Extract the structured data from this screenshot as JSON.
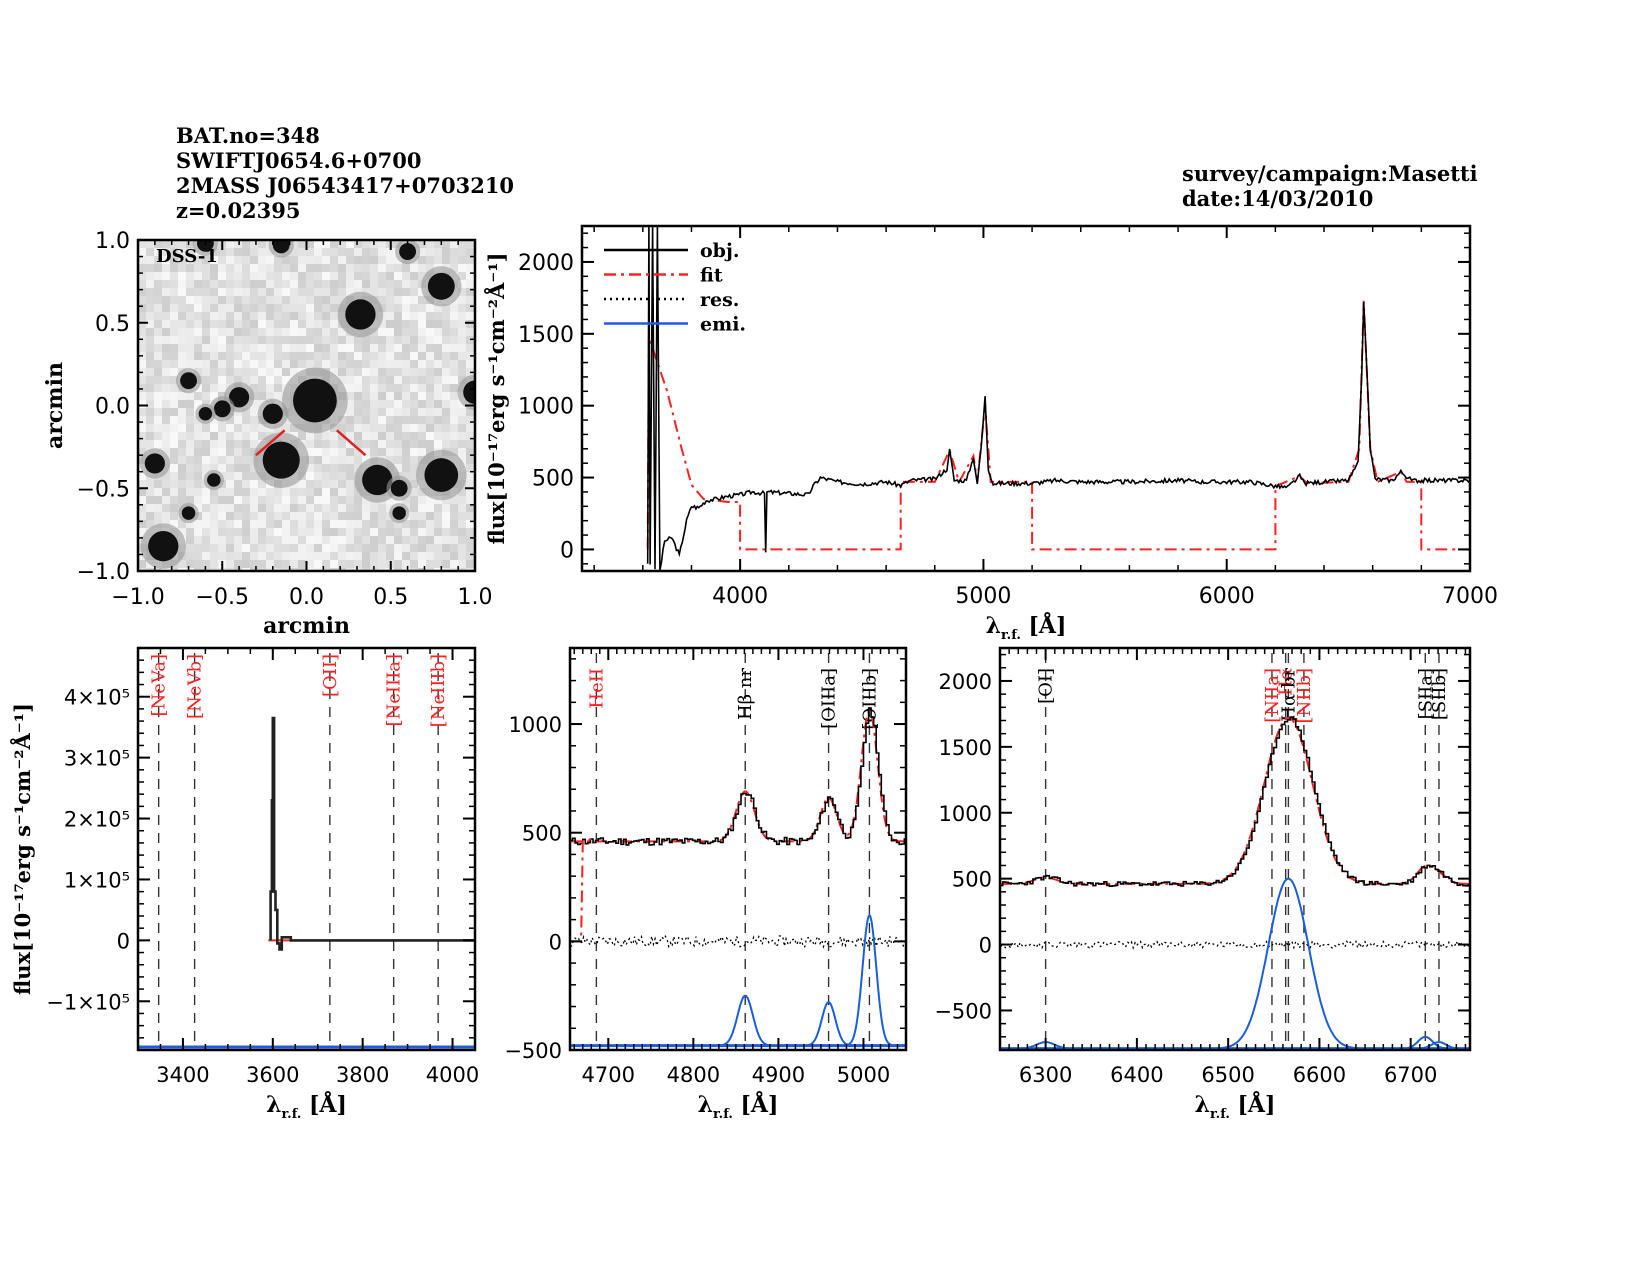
{
  "header": {
    "left_lines": [
      "BAT.no=348",
      "SWIFTJ0654.6+0700",
      "2MASS J06543417+0703210",
      "z=0.02395"
    ],
    "right_lines": [
      "survey/campaign:Masetti",
      "date:14/03/2010"
    ]
  },
  "colors": {
    "obj": "#000000",
    "fit": "#ff2020",
    "res": "#000000",
    "emi": "#1a5ee0",
    "line_label_red": "#ff2020"
  },
  "chart_data": [
    {
      "id": "image",
      "type": "heatmap",
      "label": "DSS-1",
      "xlabel": "arcmin",
      "ylabel": "arcmin",
      "xlim": [
        -1.0,
        1.0
      ],
      "ylim": [
        -1.0,
        1.0
      ],
      "xticks": [
        "−1.0",
        "−0.5",
        "0.0",
        "0.5",
        "1.0"
      ],
      "yticks": [
        "−1.0",
        "−0.5",
        "0.0",
        "0.5",
        "1.0"
      ],
      "sources": [
        {
          "x": 0.05,
          "y": 0.03,
          "r": 0.13
        },
        {
          "x": -0.15,
          "y": -0.33,
          "r": 0.11
        },
        {
          "x": 0.42,
          "y": -0.45,
          "r": 0.09
        },
        {
          "x": 0.8,
          "y": -0.42,
          "r": 0.1
        },
        {
          "x": 0.32,
          "y": 0.55,
          "r": 0.09
        },
        {
          "x": 0.8,
          "y": 0.72,
          "r": 0.08
        },
        {
          "x": -0.85,
          "y": -0.85,
          "r": 0.09
        },
        {
          "x": -0.9,
          "y": -0.35,
          "r": 0.06
        },
        {
          "x": -0.4,
          "y": 0.05,
          "r": 0.06
        },
        {
          "x": -0.2,
          "y": -0.05,
          "r": 0.06
        },
        {
          "x": -0.7,
          "y": 0.15,
          "r": 0.05
        },
        {
          "x": -0.5,
          "y": -0.02,
          "r": 0.05
        },
        {
          "x": 0.55,
          "y": -0.5,
          "r": 0.05
        },
        {
          "x": 0.6,
          "y": 0.93,
          "r": 0.05
        },
        {
          "x": -0.15,
          "y": 0.97,
          "r": 0.05
        },
        {
          "x": -0.6,
          "y": 0.98,
          "r": 0.05
        },
        {
          "x": 1.0,
          "y": 0.08,
          "r": 0.07
        },
        {
          "x": -0.7,
          "y": -0.65,
          "r": 0.04
        },
        {
          "x": 0.55,
          "y": -0.65,
          "r": 0.04
        },
        {
          "x": -0.6,
          "y": -0.05,
          "r": 0.04
        },
        {
          "x": -0.55,
          "y": -0.45,
          "r": 0.04
        }
      ],
      "marker_lines": [
        {
          "x1": -0.3,
          "y1": -0.3,
          "x2": -0.13,
          "y2": -0.15
        },
        {
          "x1": 0.18,
          "y1": -0.15,
          "x2": 0.35,
          "y2": -0.3
        }
      ]
    },
    {
      "id": "main",
      "type": "line",
      "xlabel": "λ r.f. [Å]",
      "ylabel": "flux[10⁻¹⁷erg s⁻¹cm⁻²Å⁻¹]",
      "xlim": [
        3350,
        7000
      ],
      "ylim": [
        -150,
        2250
      ],
      "xticks": [
        4000,
        5000,
        6000,
        7000
      ],
      "yticks": [
        0,
        500,
        1000,
        1500,
        2000
      ],
      "legend": {
        "placement": "top-left",
        "entries": [
          "obj.",
          "fit",
          "res.",
          "emi."
        ]
      },
      "continuum": 470,
      "obj_points": [
        [
          3620,
          -100
        ],
        [
          3625,
          2250
        ],
        [
          3630,
          -100
        ],
        [
          3640,
          2250
        ],
        [
          3650,
          -150
        ],
        [
          3660,
          2250
        ],
        [
          3670,
          -150
        ],
        [
          3690,
          60
        ],
        [
          3720,
          80
        ],
        [
          3750,
          -40
        ],
        [
          3780,
          200
        ],
        [
          3800,
          300
        ],
        [
          3830,
          290
        ],
        [
          3860,
          340
        ],
        [
          3900,
          350
        ],
        [
          3950,
          370
        ],
        [
          4000,
          380
        ],
        [
          4050,
          400
        ],
        [
          4100,
          390
        ],
        [
          4105,
          -20
        ],
        [
          4110,
          400
        ],
        [
          4200,
          390
        ],
        [
          4280,
          380
        ],
        [
          4300,
          440
        ],
        [
          4330,
          500
        ],
        [
          4400,
          470
        ],
        [
          4500,
          455
        ],
        [
          4600,
          470
        ],
        [
          4660,
          445
        ],
        [
          4700,
          480
        ],
        [
          4800,
          490
        ],
        [
          4850,
          560
        ],
        [
          4861,
          690
        ],
        [
          4880,
          480
        ],
        [
          4930,
          480
        ],
        [
          4959,
          640
        ],
        [
          4975,
          460
        ],
        [
          4990,
          700
        ],
        [
          5007,
          1060
        ],
        [
          5020,
          560
        ],
        [
          5040,
          460
        ],
        [
          5200,
          460
        ],
        [
          5300,
          480
        ],
        [
          5400,
          470
        ],
        [
          5600,
          470
        ],
        [
          5800,
          480
        ],
        [
          5900,
          470
        ],
        [
          6000,
          470
        ],
        [
          6100,
          470
        ],
        [
          6200,
          440
        ],
        [
          6250,
          430
        ],
        [
          6300,
          510
        ],
        [
          6320,
          460
        ],
        [
          6400,
          470
        ],
        [
          6500,
          480
        ],
        [
          6540,
          600
        ],
        [
          6555,
          1200
        ],
        [
          6563,
          1730
        ],
        [
          6575,
          1300
        ],
        [
          6590,
          700
        ],
        [
          6610,
          490
        ],
        [
          6680,
          480
        ],
        [
          6716,
          540
        ],
        [
          6731,
          520
        ],
        [
          6760,
          480
        ],
        [
          6850,
          480
        ],
        [
          7000,
          480
        ]
      ],
      "fit_segments": [
        [
          [
            3620,
            0
          ],
          [
            3625,
            1480
          ],
          [
            3650,
            1350
          ],
          [
            3700,
            1100
          ],
          [
            3760,
            700
          ],
          [
            3800,
            450
          ],
          [
            3850,
            350
          ],
          [
            3950,
            330
          ],
          [
            4000,
            330
          ],
          [
            4000,
            0
          ],
          [
            4660,
            0
          ],
          [
            4660,
            470
          ],
          [
            4800,
            470
          ],
          [
            4861,
            690
          ],
          [
            4900,
            470
          ],
          [
            4959,
            650
          ],
          [
            4975,
            470
          ],
          [
            5007,
            1000
          ],
          [
            5030,
            470
          ],
          [
            5200,
            470
          ],
          [
            5200,
            0
          ],
          [
            6200,
            0
          ],
          [
            6200,
            440
          ],
          [
            6300,
            510
          ],
          [
            6330,
            460
          ],
          [
            6500,
            470
          ],
          [
            6545,
            700
          ],
          [
            6563,
            1730
          ],
          [
            6590,
            700
          ],
          [
            6620,
            470
          ],
          [
            6716,
            540
          ],
          [
            6740,
            470
          ],
          [
            6800,
            470
          ],
          [
            6800,
            0
          ],
          [
            7000,
            0
          ]
        ]
      ]
    },
    {
      "id": "panel-blue",
      "type": "line",
      "xlabel": "λ r.f. [Å]",
      "ylabel": "flux[10⁻¹⁷erg s⁻¹cm⁻²Å⁻¹]",
      "xlim": [
        3300,
        4050
      ],
      "ylim": [
        -180000,
        480000
      ],
      "xticks": [
        3400,
        3600,
        3800,
        4000
      ],
      "yticks": [
        {
          "v": -100000,
          "label": "−1×10⁵"
        },
        {
          "v": 0,
          "label": "0"
        },
        {
          "v": 100000,
          "label": "1×10⁵"
        },
        {
          "v": 200000,
          "label": "2×10⁵"
        },
        {
          "v": 300000,
          "label": "3×10⁵"
        },
        {
          "v": 400000,
          "label": "4×10⁵"
        }
      ],
      "lines": [
        {
          "label": "[NeVa]",
          "x": 3346,
          "color": "red"
        },
        {
          "label": "[NeVb]",
          "x": 3426,
          "color": "red"
        },
        {
          "label": "[OII]",
          "x": 3727,
          "color": "red"
        },
        {
          "label": "[NeIIIa]",
          "x": 3869,
          "color": "red"
        },
        {
          "label": "[NeIIIb]",
          "x": 3968,
          "color": "red"
        }
      ],
      "obj_points": [
        [
          3595,
          0
        ],
        [
          3595,
          80000
        ],
        [
          3598,
          80000
        ],
        [
          3598,
          230000
        ],
        [
          3600,
          230000
        ],
        [
          3600,
          365000
        ],
        [
          3603,
          365000
        ],
        [
          3603,
          80000
        ],
        [
          3606,
          80000
        ],
        [
          3606,
          50000
        ],
        [
          3610,
          50000
        ],
        [
          3610,
          -5000
        ],
        [
          3615,
          -5000
        ],
        [
          3615,
          -15000
        ],
        [
          3620,
          -15000
        ],
        [
          3620,
          5000
        ],
        [
          3640,
          5000
        ],
        [
          3640,
          0
        ],
        [
          4050,
          0
        ]
      ],
      "fit_points": [
        [
          3590,
          0
        ],
        [
          4050,
          0
        ]
      ],
      "emi_level": -175000
    },
    {
      "id": "panel-hbeta",
      "type": "line",
      "xlabel": "λ r.f. [Å]",
      "xlim": [
        4655,
        5050
      ],
      "ylim": [
        -500,
        1350
      ],
      "xticks": [
        4700,
        4800,
        4900,
        5000
      ],
      "yticks": [
        -500,
        0,
        500,
        1000
      ],
      "lines": [
        {
          "label": "HeII",
          "x": 4686,
          "color": "red"
        },
        {
          "label": "Hβ nr",
          "x": 4861,
          "color": "black"
        },
        {
          "label": "[OIIIa]",
          "x": 4959,
          "color": "black"
        },
        {
          "label": "[OIIIb]",
          "x": 5007,
          "color": "black"
        }
      ],
      "continuum": 460,
      "peaks": [
        {
          "x": 4861,
          "obj": 690,
          "emi": 230,
          "sigma": 9
        },
        {
          "x": 4959,
          "obj": 660,
          "emi": 200,
          "sigma": 8
        },
        {
          "x": 5007,
          "obj": 1060,
          "emi": 600,
          "sigma": 8
        }
      ],
      "emi_baseline": -480
    },
    {
      "id": "panel-halpha",
      "type": "line",
      "xlabel": "λ r.f. [Å]",
      "xlim": [
        6250,
        6765
      ],
      "ylim": [
        -800,
        2250
      ],
      "xticks": [
        6300,
        6400,
        6500,
        6600,
        6700
      ],
      "yticks": [
        -500,
        0,
        500,
        1000,
        1500,
        2000
      ],
      "lines": [
        {
          "label": "[OI]",
          "x": 6300,
          "color": "black"
        },
        {
          "label": "[NIIa]",
          "x": 6548,
          "color": "red"
        },
        {
          "label": "Hα",
          "x": 6563,
          "color": "red"
        },
        {
          "label": "Hα br",
          "x": 6566,
          "color": "black"
        },
        {
          "label": "[NIIb]",
          "x": 6583,
          "color": "red"
        },
        {
          "label": "[SIIa]",
          "x": 6716,
          "color": "black"
        },
        {
          "label": "[SIIb]",
          "x": 6731,
          "color": "black"
        }
      ],
      "continuum": 460,
      "peaks": [
        {
          "x": 6300,
          "obj": 510,
          "emi": 50,
          "sigma": 10
        },
        {
          "x": 6566,
          "obj": 1720,
          "emi": 1290,
          "sigma": 22
        },
        {
          "x": 6716,
          "obj": 580,
          "emi": 90,
          "sigma": 8
        },
        {
          "x": 6731,
          "obj": 520,
          "emi": 50,
          "sigma": 8
        }
      ],
      "emi_baseline": -790
    }
  ]
}
